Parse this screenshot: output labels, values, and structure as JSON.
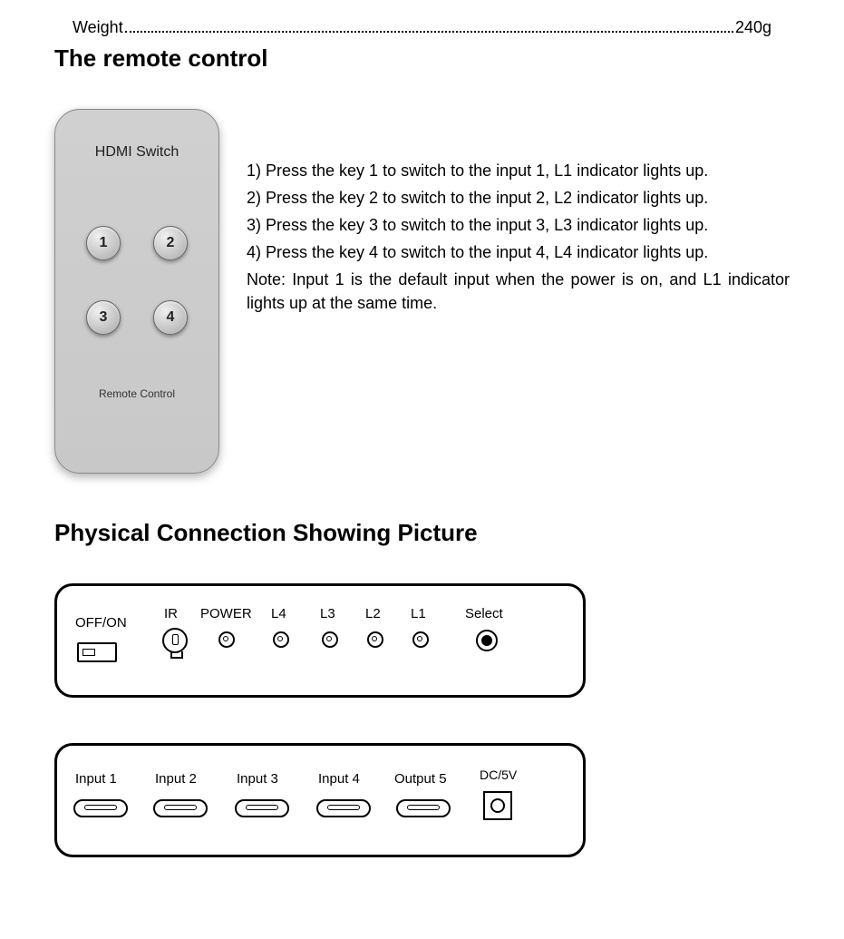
{
  "spec": {
    "label": "Weight",
    "value": "240g"
  },
  "remote": {
    "section_title": "The remote control",
    "device_title": "HDMI Switch",
    "device_sublabel": "Remote Control",
    "buttons": {
      "b1": "1",
      "b2": "2",
      "b3": "3",
      "b4": "4"
    },
    "instructions": [
      "1) Press the key 1 to switch to the input 1, L1 indicator lights up.",
      "2) Press the key 2 to switch to the input 2, L2 indicator lights up.",
      "3) Press the key 3 to switch to the input 3, L3 indicator lights up.",
      "4) Press the key 4 to switch to the input 4, L4 indicator lights up."
    ],
    "note": "Note: Input 1 is the default input when the power is on, and L1 indicator lights up at the same time."
  },
  "physical": {
    "section_title": "Physical Connection Showing Picture",
    "front": {
      "offon": "OFF/ON",
      "ir": "IR",
      "power": "POWER",
      "l4": "L4",
      "l3": "L3",
      "l2": "L2",
      "l1": "L1",
      "select": "Select"
    },
    "back": {
      "in1": "Input 1",
      "in2": "Input 2",
      "in3": "Input 3",
      "in4": "Input 4",
      "out5": "Output 5",
      "dc": "DC/5V"
    }
  }
}
